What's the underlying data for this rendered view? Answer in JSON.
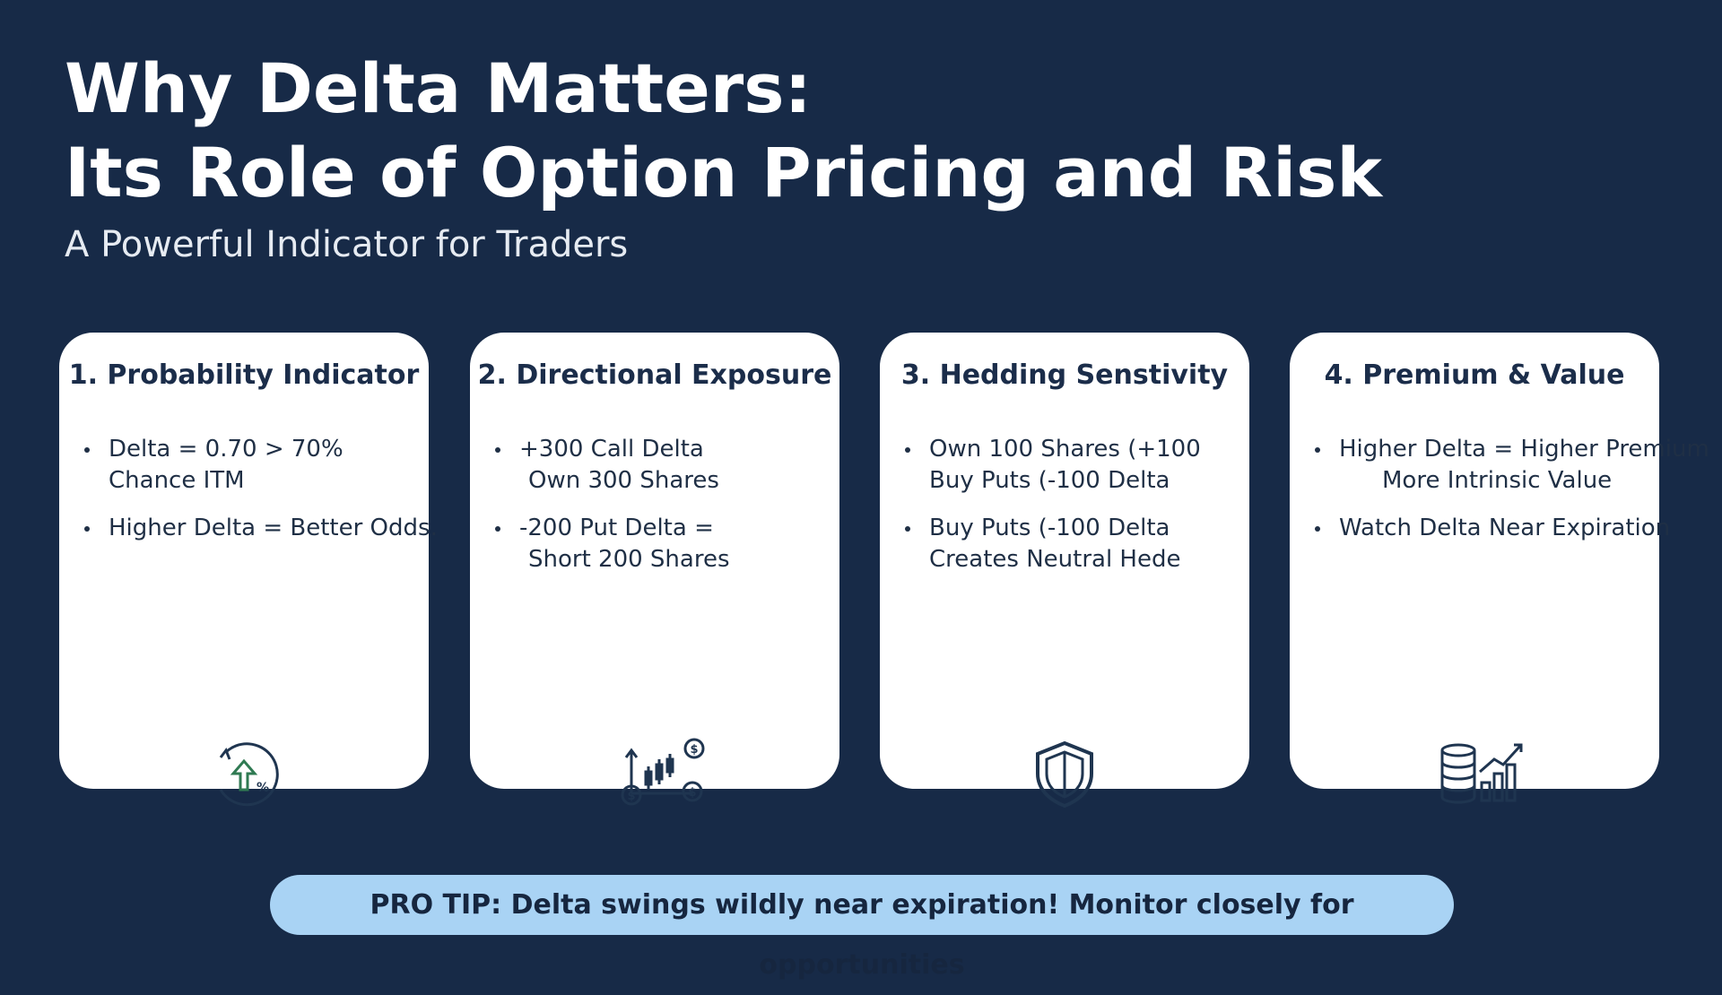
{
  "header": {
    "title_lines": [
      "Why Delta Matters:",
      "Its Role of Option Pricing and Risk"
    ],
    "subtitle": "A Powerful Indicator for Traders"
  },
  "cards": [
    {
      "title": "1. Probability Indicator",
      "bullets": [
        [
          "Delta = 0.70 > 70%",
          "Chance ITM"
        ],
        [
          "Higher Delta = Better Odds."
        ]
      ]
    },
    {
      "title": "2. Directional Exposure",
      "bullets": [
        [
          "+300 Call Delta",
          "Own 300 Shares"
        ],
        [
          "-200 Put Delta =",
          "Short 200 Shares"
        ]
      ]
    },
    {
      "title": "3. Hedding Senstivity",
      "bullets": [
        [
          "Own 100 Shares (+100",
          "Buy Puts (-100 Delta"
        ],
        [
          "Buy Puts (-100 Delta",
          "Creates Neutral Hede"
        ]
      ]
    },
    {
      "title": "4. Premium & Value",
      "bullets": [
        [
          "Higher Delta = Higher Premium",
          "More Intrinsic Value"
        ],
        [
          "Watch Delta Near Expiration"
        ]
      ]
    }
  ],
  "pro_tip": "PRO TIP: Delta swings wildly near expiration! Monitor closely for opportunities"
}
